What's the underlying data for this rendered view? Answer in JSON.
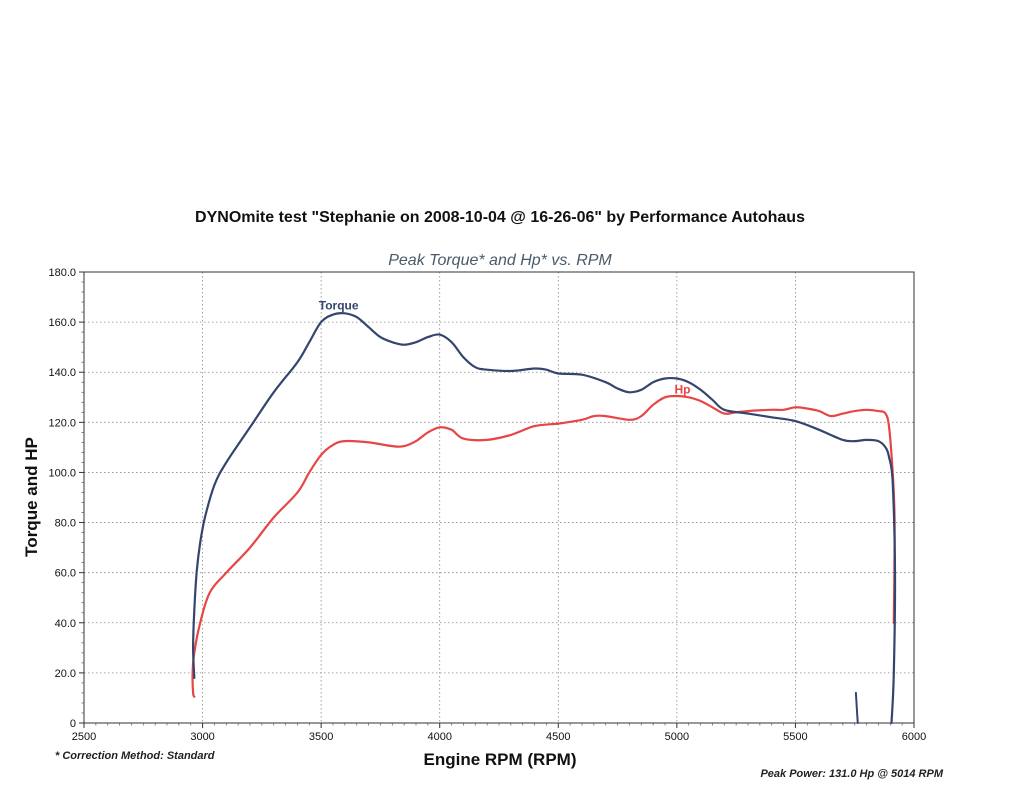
{
  "chart_data": {
    "type": "line",
    "title": "DYNOmite test \"Stephanie on 2008-10-04 @ 16-26-06\" by Performance Autohaus",
    "subtitle": "Peak Torque* and Hp* vs. RPM",
    "xlabel": "Engine RPM (RPM)",
    "ylabel": "Torque and HP",
    "xlim": [
      2500,
      6000
    ],
    "ylim": [
      0,
      180
    ],
    "x_ticks": [
      "2500",
      "3000",
      "3500",
      "4000",
      "4500",
      "5000",
      "5500",
      "6000"
    ],
    "y_ticks": [
      "0",
      "20.0",
      "40.0",
      "60.0",
      "80.0",
      "100.0",
      "120.0",
      "140.0",
      "160.0",
      "180.0"
    ],
    "grid": true,
    "series": [
      {
        "name": "Torque",
        "color": "#34466e",
        "points": [
          [
            2965,
            18
          ],
          [
            2960,
            30
          ],
          [
            2965,
            45
          ],
          [
            2975,
            60
          ],
          [
            2990,
            72
          ],
          [
            3010,
            82
          ],
          [
            3050,
            95
          ],
          [
            3100,
            104
          ],
          [
            3200,
            118
          ],
          [
            3300,
            132
          ],
          [
            3400,
            144
          ],
          [
            3450,
            152
          ],
          [
            3500,
            160
          ],
          [
            3550,
            163
          ],
          [
            3600,
            163.5
          ],
          [
            3650,
            162
          ],
          [
            3700,
            158
          ],
          [
            3750,
            154
          ],
          [
            3800,
            152
          ],
          [
            3850,
            151
          ],
          [
            3900,
            152
          ],
          [
            3950,
            154
          ],
          [
            4000,
            155
          ],
          [
            4050,
            152
          ],
          [
            4100,
            146
          ],
          [
            4150,
            142
          ],
          [
            4200,
            141
          ],
          [
            4300,
            140.5
          ],
          [
            4400,
            141.5
          ],
          [
            4450,
            141
          ],
          [
            4500,
            139.5
          ],
          [
            4600,
            139
          ],
          [
            4700,
            136
          ],
          [
            4750,
            133.5
          ],
          [
            4800,
            132
          ],
          [
            4850,
            133
          ],
          [
            4900,
            136
          ],
          [
            4950,
            137.5
          ],
          [
            5000,
            137.5
          ],
          [
            5050,
            136
          ],
          [
            5100,
            133
          ],
          [
            5150,
            129
          ],
          [
            5200,
            125
          ],
          [
            5300,
            123.5
          ],
          [
            5400,
            122
          ],
          [
            5500,
            120.5
          ],
          [
            5600,
            117
          ],
          [
            5700,
            113
          ],
          [
            5750,
            112.5
          ],
          [
            5800,
            113
          ],
          [
            5850,
            112.5
          ],
          [
            5880,
            110
          ],
          [
            5895,
            106
          ],
          [
            5910,
            96
          ],
          [
            5920,
            60
          ],
          [
            5915,
            20
          ],
          [
            5905,
            0
          ]
        ]
      },
      {
        "name": "Hp",
        "color": "#e84545",
        "points": [
          [
            2965,
            10.5
          ],
          [
            2960,
            12
          ],
          [
            2958,
            20
          ],
          [
            2965,
            28
          ],
          [
            2990,
            40
          ],
          [
            3030,
            52
          ],
          [
            3100,
            60
          ],
          [
            3200,
            70
          ],
          [
            3300,
            82
          ],
          [
            3400,
            92
          ],
          [
            3450,
            100
          ],
          [
            3500,
            107
          ],
          [
            3550,
            111
          ],
          [
            3600,
            112.5
          ],
          [
            3700,
            112
          ],
          [
            3800,
            110.5
          ],
          [
            3850,
            110.5
          ],
          [
            3900,
            112.5
          ],
          [
            3950,
            116
          ],
          [
            4000,
            118
          ],
          [
            4050,
            117
          ],
          [
            4100,
            113.5
          ],
          [
            4200,
            113
          ],
          [
            4300,
            115
          ],
          [
            4400,
            118.5
          ],
          [
            4500,
            119.5
          ],
          [
            4600,
            121
          ],
          [
            4650,
            122.5
          ],
          [
            4700,
            122.5
          ],
          [
            4800,
            121
          ],
          [
            4850,
            122.5
          ],
          [
            4900,
            127
          ],
          [
            4950,
            130
          ],
          [
            5000,
            130.5
          ],
          [
            5050,
            130
          ],
          [
            5100,
            128.5
          ],
          [
            5150,
            126
          ],
          [
            5200,
            123.5
          ],
          [
            5250,
            124
          ],
          [
            5300,
            124.5
          ],
          [
            5400,
            125
          ],
          [
            5450,
            125
          ],
          [
            5500,
            126
          ],
          [
            5550,
            125.5
          ],
          [
            5600,
            124.5
          ],
          [
            5650,
            122.5
          ],
          [
            5700,
            123.5
          ],
          [
            5750,
            124.5
          ],
          [
            5800,
            125
          ],
          [
            5850,
            124.5
          ],
          [
            5880,
            123.5
          ],
          [
            5895,
            118
          ],
          [
            5910,
            100
          ],
          [
            5918,
            80
          ],
          [
            5915,
            40
          ]
        ]
      }
    ],
    "stray_mark": {
      "color": "#34466e",
      "points": [
        [
          5755,
          12
        ],
        [
          5760,
          4
        ],
        [
          5763,
          0
        ]
      ]
    },
    "series_labels": [
      {
        "text": "Torque",
        "x": 3490,
        "y": 165,
        "color": "#34466e"
      },
      {
        "text": "Hp",
        "x": 4990,
        "y": 131.5,
        "color": "#e84545"
      }
    ]
  },
  "footnote": "* Correction Method: Standard",
  "peak_power_note": "Peak Power: 131.0 Hp @ 5014 RPM"
}
